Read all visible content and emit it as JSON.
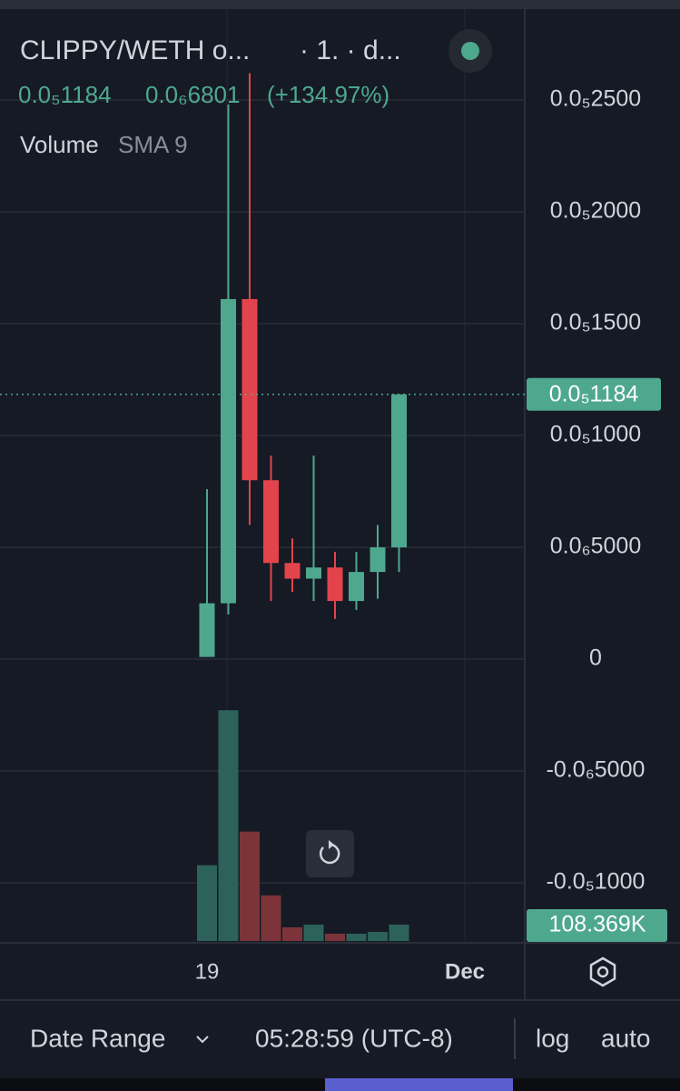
{
  "chart_data": {
    "type": "candlestick",
    "title": "CLIPPY/WETH o...",
    "interval": "· 1. · d...",
    "last_price": {
      "value": 1.184e-06,
      "label": "0.0₅1184"
    },
    "change": "0.0₆6801",
    "change_percent": "(+134.97%)",
    "indicator": "Volume",
    "indicator_setting": "SMA 9",
    "categories": [
      "19",
      null,
      null,
      null,
      null,
      null,
      null,
      null,
      null,
      null
    ],
    "x_end_label": "Dec",
    "open": [
      1e-08,
      2.5e-07,
      1.61e-06,
      8e-07,
      4.3e-07,
      3.6e-07,
      4.1e-07,
      2.6e-07,
      3.9e-07,
      5e-07
    ],
    "high": [
      7.6e-07,
      2.48e-06,
      2.62e-06,
      9.1e-07,
      5.4e-07,
      9.1e-07,
      4.8e-07,
      4.8e-07,
      6e-07,
      1.184e-06
    ],
    "low": [
      1e-08,
      2e-07,
      6e-07,
      2.6e-07,
      3e-07,
      2.6e-07,
      1.8e-07,
      2.2e-07,
      2.7e-07,
      3.9e-07
    ],
    "close": [
      2.5e-07,
      1.61e-06,
      8e-07,
      4.3e-07,
      3.6e-07,
      4.1e-07,
      2.6e-07,
      3.9e-07,
      5e-07,
      1.184e-06
    ],
    "up_color": "#4ea88e",
    "down_color": "#e3444c",
    "volume": {
      "values": [
        500000,
        1523000,
        722000,
        301000,
        90000,
        108000,
        48000,
        48000,
        60000,
        108369
      ],
      "last_label": "108.369K",
      "ylim": [
        0,
        1800000
      ],
      "up_color": "#2c6259",
      "down_color": "#7c343a"
    },
    "ylim": [
      -1.268e-06,
      2.947e-06
    ],
    "yticks": [
      {
        "value": 2.5e-06,
        "label": "0.0₅2500"
      },
      {
        "value": 2e-06,
        "label": "0.0₅2000"
      },
      {
        "value": 1.5e-06,
        "label": "0.0₅1500"
      },
      {
        "value": 1e-06,
        "label": "0.0₅1000"
      },
      {
        "value": 5e-07,
        "label": "0.0₆5000"
      },
      0,
      {
        "value": -5e-07,
        "label": "-0.0₆5000"
      },
      {
        "value": -1e-06,
        "label": "-0.0₅1000"
      }
    ],
    "grid": true
  },
  "footer": {
    "date_range": "Date Range",
    "time": "05:28:59 (UTC-8)",
    "log": "log",
    "auto": "auto"
  }
}
